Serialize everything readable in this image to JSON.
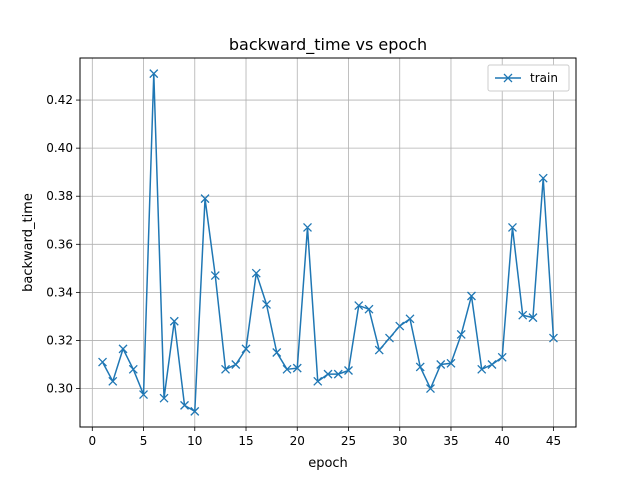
{
  "chart_data": {
    "type": "line",
    "title": "backward_time vs epoch",
    "xlabel": "epoch",
    "ylabel": "backward_time",
    "xlim": [
      -1.2,
      47.2
    ],
    "ylim": [
      0.284,
      0.4375
    ],
    "xticks": [
      0,
      5,
      10,
      15,
      20,
      25,
      30,
      35,
      40,
      45
    ],
    "yticks": [
      0.3,
      0.32,
      0.34,
      0.36,
      0.38,
      0.4,
      0.42
    ],
    "ytick_labels": [
      "0.30",
      "0.32",
      "0.34",
      "0.36",
      "0.38",
      "0.40",
      "0.42"
    ],
    "grid": true,
    "legend_position": "top-right",
    "marker": "x",
    "series": [
      {
        "name": "train",
        "color": "#1f77b4",
        "x": [
          1,
          2,
          3,
          4,
          5,
          6,
          7,
          8,
          9,
          10,
          11,
          12,
          13,
          14,
          15,
          16,
          17,
          18,
          19,
          20,
          21,
          22,
          23,
          24,
          25,
          26,
          27,
          28,
          29,
          30,
          31,
          32,
          33,
          34,
          35,
          36,
          37,
          38,
          39,
          40,
          41,
          42,
          43,
          44,
          45
        ],
        "y": [
          0.311,
          0.303,
          0.3165,
          0.308,
          0.2975,
          0.431,
          0.296,
          0.328,
          0.293,
          0.2905,
          0.379,
          0.347,
          0.308,
          0.31,
          0.3165,
          0.348,
          0.335,
          0.315,
          0.308,
          0.3085,
          0.367,
          0.303,
          0.306,
          0.306,
          0.3075,
          0.3345,
          0.333,
          0.316,
          0.321,
          0.326,
          0.329,
          0.309,
          0.3,
          0.31,
          0.3105,
          0.3225,
          0.3385,
          0.308,
          0.31,
          0.313,
          0.367,
          0.3305,
          0.3295,
          0.3875,
          0.321
        ]
      }
    ]
  }
}
